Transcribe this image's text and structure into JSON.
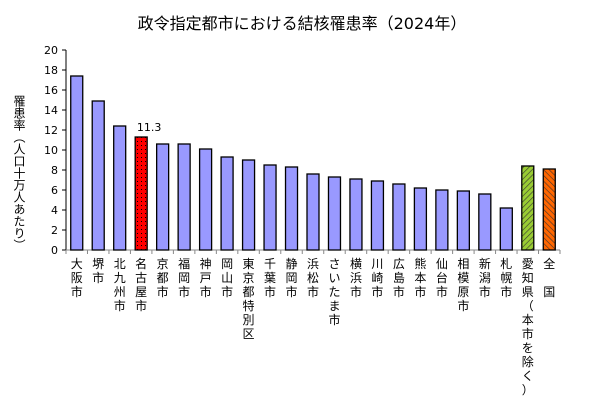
{
  "chart_data": {
    "type": "bar",
    "title": "政令指定都市における結核罹患率（2024年）",
    "xlabel": "",
    "ylabel": "罹患率（人口十万人あたり）",
    "ylim": [
      0,
      20
    ],
    "yticks": [
      0,
      2,
      4,
      6,
      8,
      10,
      12,
      14,
      16,
      18,
      20
    ],
    "grid": false,
    "legend": null,
    "categories": [
      "大阪市",
      "堺市",
      "北九州市",
      "名古屋市",
      "京都市",
      "福岡市",
      "神戸市",
      "岡山市",
      "東京都特別区",
      "千葉市",
      "静岡市",
      "浜松市",
      "さいたま市",
      "横浜市",
      "川崎市",
      "広島市",
      "熊本市",
      "仙台市",
      "相模原市",
      "新潟市",
      "札幌市",
      "愛知県（本市を除く）",
      "全　国"
    ],
    "values": [
      17.4,
      14.9,
      12.4,
      11.3,
      10.6,
      10.6,
      10.1,
      9.3,
      9.0,
      8.5,
      8.3,
      7.6,
      7.3,
      7.1,
      6.9,
      6.6,
      6.2,
      6.0,
      5.9,
      5.6,
      4.2,
      8.4,
      8.1
    ],
    "colors": [
      "#9999ff",
      "#9999ff",
      "#9999ff",
      "#ff0000",
      "#9999ff",
      "#9999ff",
      "#9999ff",
      "#9999ff",
      "#9999ff",
      "#9999ff",
      "#9999ff",
      "#9999ff",
      "#9999ff",
      "#9999ff",
      "#9999ff",
      "#9999ff",
      "#9999ff",
      "#9999ff",
      "#9999ff",
      "#9999ff",
      "#9999ff",
      "#99cc33",
      "#ff6600"
    ],
    "annotations": [
      {
        "category": "名古屋市",
        "text": "11.3"
      }
    ]
  }
}
